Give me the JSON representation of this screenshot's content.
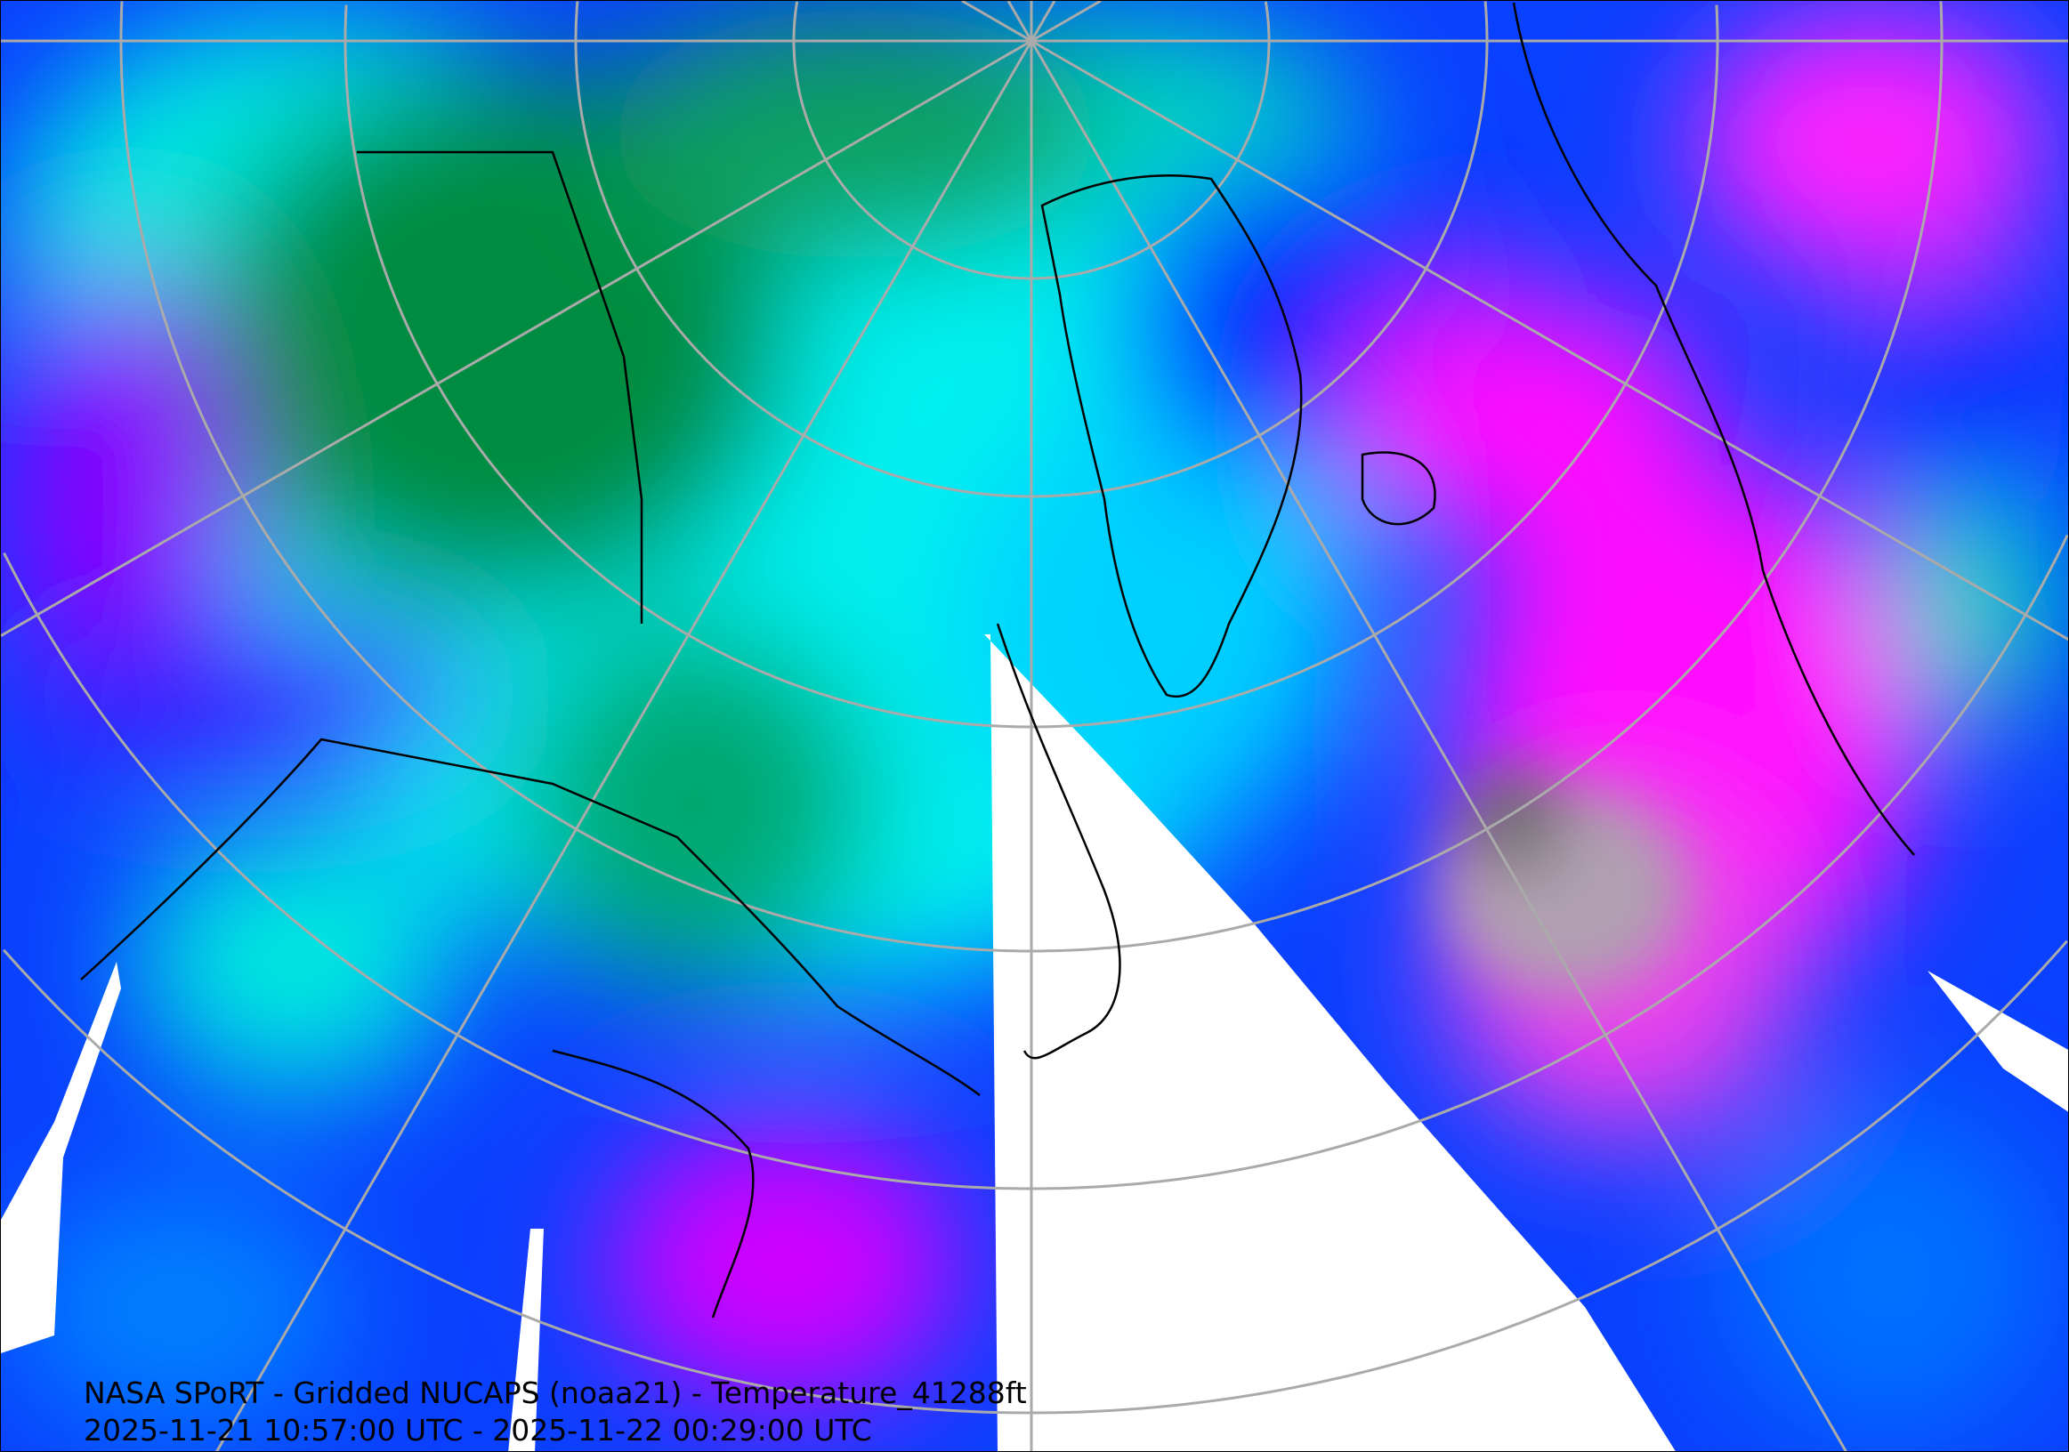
{
  "map": {
    "projection": "polar-stereographic",
    "variable": "Temperature",
    "colors": {
      "cold": "#008c3c",
      "cool": "#00ffff",
      "mid": "#0050ff",
      "warm": "#8000ff",
      "warmer": "#ff00ff",
      "warmest": "#a0a0a0",
      "no_data": "#ffffff",
      "graticule": "#aaaaaa",
      "coastline": "#000000"
    }
  },
  "caption": {
    "line1": "NASA SPoRT - Gridded NUCAPS (noaa21) - Temperature_41288ft",
    "line2": "2025-11-21 10:57:00 UTC - 2025-11-22 00:29:00 UTC"
  }
}
